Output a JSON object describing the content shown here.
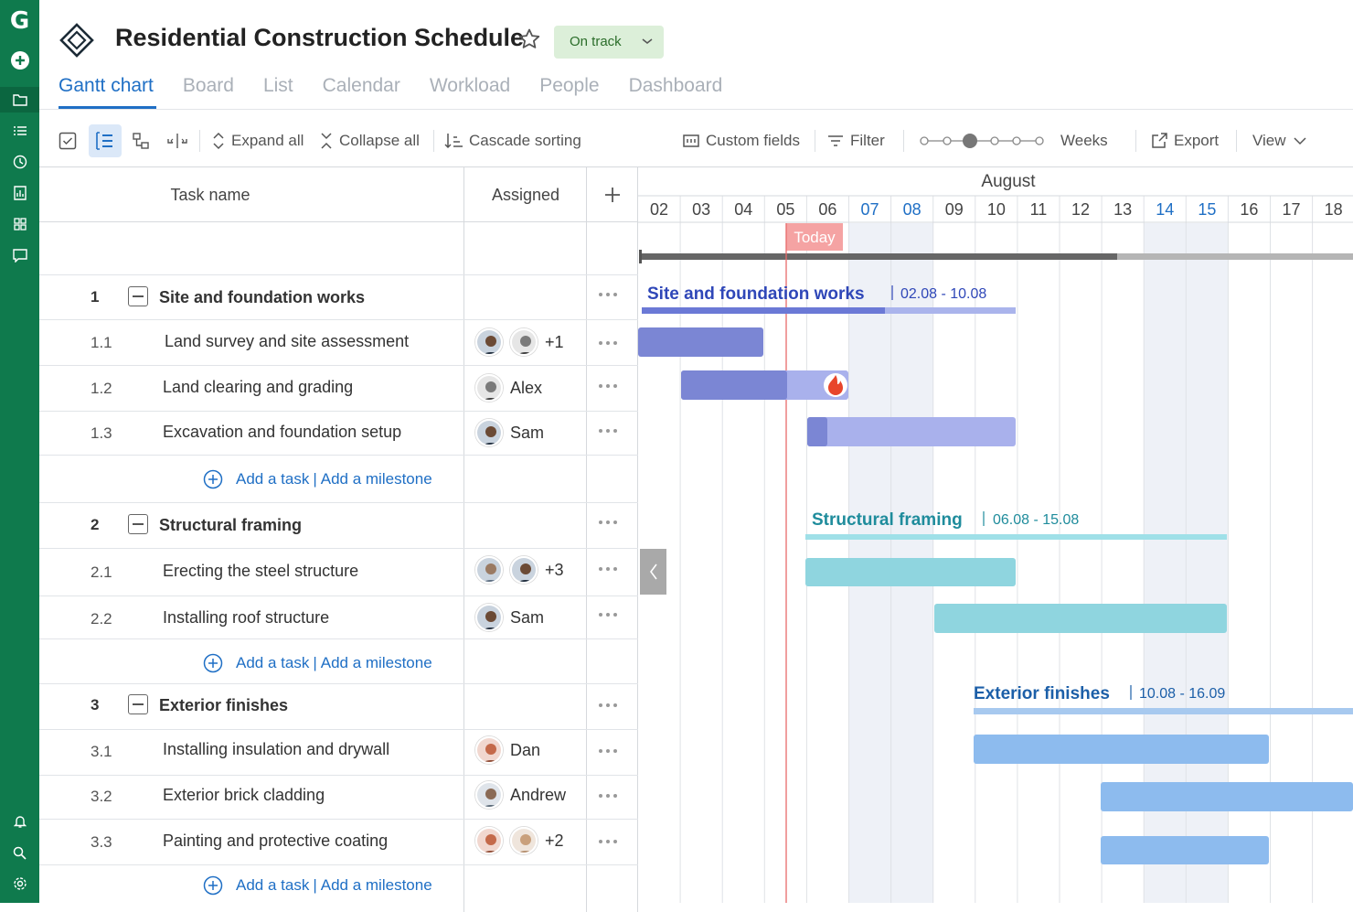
{
  "rail": {
    "logo": "G"
  },
  "header": {
    "title": "Residential Construction Schedule",
    "status": "On track"
  },
  "tabs": [
    "Gantt chart",
    "Board",
    "List",
    "Calendar",
    "Workload",
    "People",
    "Dashboard"
  ],
  "toolbar": {
    "expand": "Expand all",
    "collapse": "Collapse all",
    "cascade": "Cascade sorting",
    "custom_fields": "Custom fields",
    "filter": "Filter",
    "zoom": "Weeks",
    "export": "Export",
    "view": "View"
  },
  "grid": {
    "col_task": "Task name",
    "col_assigned": "Assigned"
  },
  "add": {
    "task": "Add a task",
    "milestone": "Add a milestone"
  },
  "rows": [
    {
      "num": "1",
      "name": "Site and foundation works"
    },
    {
      "num": "1.1",
      "name": "Land survey and site assessment",
      "extra": "+1"
    },
    {
      "num": "1.2",
      "name": "Land clearing and grading",
      "assignee": "Alex"
    },
    {
      "num": "1.3",
      "name": "Excavation and foundation setup",
      "assignee": "Sam"
    },
    {
      "num": "2",
      "name": "Structural framing"
    },
    {
      "num": "2.1",
      "name": "Erecting the steel structure",
      "extra": "+3"
    },
    {
      "num": "2.2",
      "name": "Installing roof structure",
      "assignee": "Sam"
    },
    {
      "num": "3",
      "name": "Exterior finishes"
    },
    {
      "num": "3.1",
      "name": "Installing insulation and drywall",
      "assignee": "Dan"
    },
    {
      "num": "3.2",
      "name": "Exterior brick cladding",
      "assignee": "Andrew"
    },
    {
      "num": "3.3",
      "name": "Painting and protective coating",
      "extra": "+2"
    }
  ],
  "timeline": {
    "month": "August",
    "days": [
      "02",
      "03",
      "04",
      "05",
      "06",
      "07",
      "08",
      "09",
      "10",
      "11",
      "12",
      "13",
      "14",
      "15",
      "16",
      "17",
      "18"
    ],
    "weekend_days": [
      "07",
      "08",
      "14",
      "15"
    ],
    "today_label": "Today",
    "today_day": 5.0,
    "groups": [
      {
        "name": "Site and foundation works",
        "range": "02.08 - 10.08",
        "color": "#2f47b8",
        "track": "#aab4ec",
        "progress": "#6b79d6"
      },
      {
        "name": "Structural framing",
        "range": "06.08 - 15.08",
        "color": "#1f8c9c",
        "track": "#9fe0e8"
      },
      {
        "name": "Exterior finishes",
        "range": "10.08 - 16.09",
        "color": "#1c5fa8",
        "track": "#a7c9ef"
      }
    ]
  }
}
